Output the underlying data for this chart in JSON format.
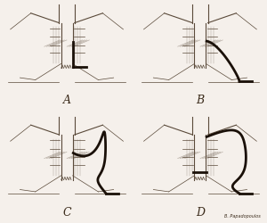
{
  "bg_color": "#f5f0eb",
  "line_color": "#5a4a3a",
  "thick_line_color": "#1a1008",
  "label_color": "#3a2a1a",
  "labels": [
    "A",
    "B",
    "C",
    "D"
  ],
  "signature": "B. Papadopoulos",
  "figsize": [
    3.0,
    2.51
  ],
  "dpi": 100
}
